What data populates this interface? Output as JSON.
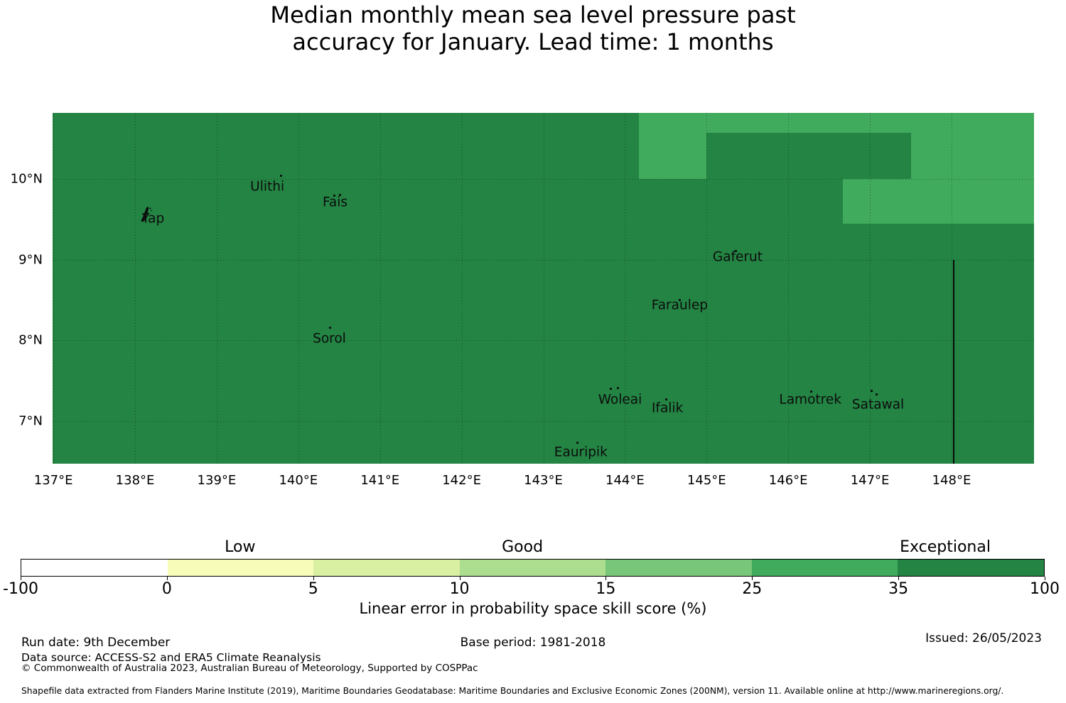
{
  "title": {
    "line1": "Median monthly mean sea level pressure past",
    "line2": "accuracy for January. Lead time: 1 months"
  },
  "chart_data": {
    "type": "heatmap",
    "title": "Median monthly mean sea level pressure past accuracy for January. Lead time: 1 months",
    "map_extent": {
      "lon_min": 136.99,
      "lon_max": 149.01,
      "lat_min": 6.47,
      "lat_max": 10.82
    },
    "x_ticks": [
      {
        "lon": 137,
        "label": "137°E"
      },
      {
        "lon": 138,
        "label": "138°E"
      },
      {
        "lon": 139,
        "label": "139°E"
      },
      {
        "lon": 140,
        "label": "140°E"
      },
      {
        "lon": 141,
        "label": "141°E"
      },
      {
        "lon": 142,
        "label": "142°E"
      },
      {
        "lon": 143,
        "label": "143°E"
      },
      {
        "lon": 144,
        "label": "144°E"
      },
      {
        "lon": 145,
        "label": "145°E"
      },
      {
        "lon": 146,
        "label": "146°E"
      },
      {
        "lon": 147,
        "label": "147°E"
      },
      {
        "lon": 148,
        "label": "148°E"
      }
    ],
    "y_ticks": [
      {
        "lat": 10,
        "label": "10°N"
      },
      {
        "lat": 9,
        "label": "9°N"
      },
      {
        "lat": 8,
        "label": "8°N"
      },
      {
        "lat": 7,
        "label": "7°N"
      }
    ],
    "grid": true,
    "background_skill_bin": "35-100",
    "colors": {
      "skill_35_100": "#238443",
      "skill_25_35": "#41ab5d"
    },
    "cells_25_35": [
      {
        "lon_min": 144.17,
        "lon_max": 145.0,
        "lat_min": 10.0,
        "lat_max": 10.82
      },
      {
        "lon_min": 145.0,
        "lon_max": 149.01,
        "lat_min": 10.57,
        "lat_max": 10.82
      },
      {
        "lon_min": 147.5,
        "lon_max": 149.01,
        "lat_min": 10.0,
        "lat_max": 10.82
      },
      {
        "lon_min": 146.67,
        "lon_max": 149.01,
        "lat_min": 9.445,
        "lat_max": 10.0
      }
    ],
    "eez_boundary": {
      "lon": 148.03,
      "lat_min": 6.47,
      "lat_max": 9.0
    },
    "islands": [
      {
        "name": "Yap",
        "label_lon": 138.22,
        "label_lat": 9.51,
        "shape": "yap",
        "dots": []
      },
      {
        "name": "Ulithi",
        "label_lon": 139.62,
        "label_lat": 9.9,
        "dots": [
          [
            139.79,
            10.04
          ]
        ]
      },
      {
        "name": "Fais",
        "label_lon": 140.45,
        "label_lat": 9.71,
        "dots": [
          [
            140.44,
            9.79
          ],
          [
            140.51,
            9.8
          ]
        ]
      },
      {
        "name": "Sorol",
        "label_lon": 140.38,
        "label_lat": 8.02,
        "dots": [
          [
            140.39,
            8.16
          ]
        ]
      },
      {
        "name": "Gaferut",
        "label_lon": 145.38,
        "label_lat": 9.03,
        "dots": [
          [
            145.36,
            9.11
          ]
        ]
      },
      {
        "name": "Faraulep",
        "label_lon": 144.67,
        "label_lat": 8.43,
        "dots": [
          [
            144.67,
            8.5
          ]
        ]
      },
      {
        "name": "Woleai",
        "label_lon": 143.94,
        "label_lat": 7.26,
        "dots": [
          [
            143.83,
            7.4
          ],
          [
            143.91,
            7.41
          ]
        ]
      },
      {
        "name": "Ifalik",
        "label_lon": 144.52,
        "label_lat": 7.16,
        "dots": [
          [
            144.51,
            7.27
          ]
        ]
      },
      {
        "name": "Lamotrek",
        "label_lon": 146.27,
        "label_lat": 7.26,
        "dots": [
          [
            146.28,
            7.36
          ]
        ]
      },
      {
        "name": "Satawal",
        "label_lon": 147.1,
        "label_lat": 7.2,
        "dots": [
          [
            147.02,
            7.37
          ],
          [
            147.08,
            7.33
          ]
        ]
      },
      {
        "name": "Eauripik",
        "label_lon": 143.46,
        "label_lat": 6.61,
        "dots": [
          [
            143.42,
            6.73
          ]
        ]
      }
    ],
    "colorbar": {
      "boundaries": [
        -100,
        0,
        5,
        10,
        15,
        25,
        35,
        100
      ],
      "tick_labels": [
        "-100",
        "0",
        "5",
        "10",
        "15",
        "25",
        "35",
        "100"
      ],
      "segment_colors": [
        "#ffffff",
        "#f7fcb9",
        "#d9f0a3",
        "#addd8e",
        "#78c679",
        "#41ab5d",
        "#238443"
      ],
      "category_labels": [
        {
          "text": "Low",
          "seg_center": 1.5
        },
        {
          "text": "Good",
          "seg_center": 3.43
        },
        {
          "text": "Exceptional",
          "seg_center": 6.32
        }
      ],
      "label": "Linear error in probability space skill score (%)"
    }
  },
  "footer": {
    "run_date": "Run date: 9th December",
    "base_period": "Base period: 1981-2018",
    "issued": "Issued: 26/05/2023",
    "data_source": "Data source: ACCESS-S2 and ERA5 Climate Reanalysis",
    "copyright": "© Commonwealth of Australia 2023, Australian Bureau of Meteorology, Supported by COSPPac",
    "shapefile_note": "Shapefile data extracted from Flanders Marine Institute (2019), Maritime Boundaries Geodatabase: Maritime Boundaries and Exclusive Economic Zones (200NM), version 11. Available online at http://www.marineregions.org/."
  }
}
